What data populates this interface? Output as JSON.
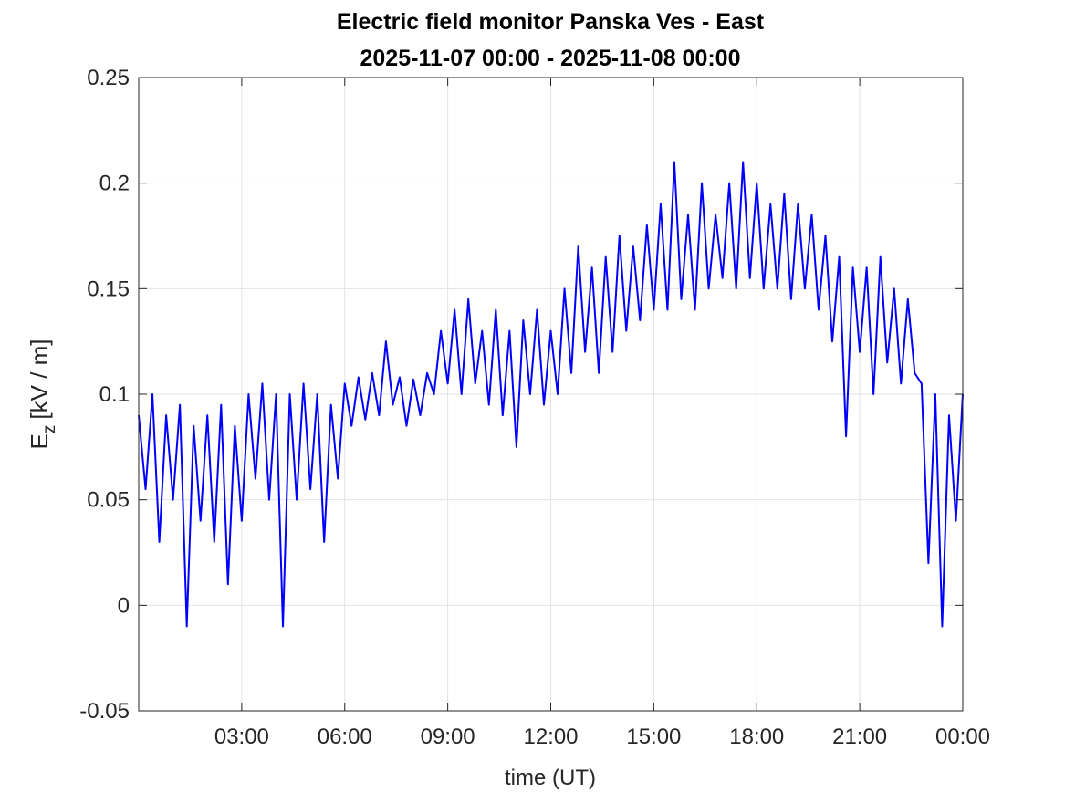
{
  "chart_data": {
    "type": "line",
    "title": "Electric field monitor Panska Ves - East",
    "subtitle": "2025-11-07 00:00 - 2025-11-08 00:00",
    "xlabel": "time (UT)",
    "ylabel": {
      "main": "E",
      "sub": "z",
      "unit": "[kV / m]"
    },
    "xlim": [
      0,
      24
    ],
    "xticks": [
      {
        "value": 3,
        "label": "03:00"
      },
      {
        "value": 6,
        "label": "06:00"
      },
      {
        "value": 9,
        "label": "09:00"
      },
      {
        "value": 12,
        "label": "12:00"
      },
      {
        "value": 15,
        "label": "15:00"
      },
      {
        "value": 18,
        "label": "18:00"
      },
      {
        "value": 21,
        "label": "21:00"
      },
      {
        "value": 24,
        "label": "00:00"
      }
    ],
    "ylim": [
      -0.05,
      0.25
    ],
    "yticks": [
      -0.05,
      0,
      0.05,
      0.1,
      0.15,
      0.2,
      0.25
    ],
    "grid": true,
    "series": [
      {
        "color": "#0000ff",
        "x": [
          0,
          0.2,
          0.4,
          0.6,
          0.8,
          1,
          1.2,
          1.4,
          1.6,
          1.8,
          2,
          2.2,
          2.4,
          2.6,
          2.8,
          3,
          3.2,
          3.4,
          3.6,
          3.8,
          4,
          4.2,
          4.4,
          4.6,
          4.8,
          5,
          5.2,
          5.4,
          5.6,
          5.8,
          6,
          6.2,
          6.4,
          6.6,
          6.8,
          7,
          7.2,
          7.4,
          7.6,
          7.8,
          8,
          8.2,
          8.4,
          8.6,
          8.8,
          9,
          9.2,
          9.4,
          9.6,
          9.8,
          10,
          10.2,
          10.4,
          10.6,
          10.8,
          11,
          11.2,
          11.4,
          11.6,
          11.8,
          12,
          12.2,
          12.4,
          12.6,
          12.8,
          13,
          13.2,
          13.4,
          13.6,
          13.8,
          14,
          14.2,
          14.4,
          14.6,
          14.8,
          15,
          15.2,
          15.4,
          15.6,
          15.8,
          16,
          16.2,
          16.4,
          16.6,
          16.8,
          17,
          17.2,
          17.4,
          17.6,
          17.8,
          18,
          18.2,
          18.4,
          18.6,
          18.8,
          19,
          19.2,
          19.4,
          19.6,
          19.8,
          20,
          20.2,
          20.4,
          20.6,
          20.8,
          21,
          21.2,
          21.4,
          21.6,
          21.8,
          22,
          22.2,
          22.4,
          22.6,
          22.8,
          23,
          23.2,
          23.4,
          23.6,
          23.8,
          24
        ],
        "values": [
          0.09,
          0.055,
          0.1,
          0.03,
          0.09,
          0.05,
          0.095,
          -0.01,
          0.085,
          0.04,
          0.09,
          0.03,
          0.095,
          0.01,
          0.085,
          0.04,
          0.1,
          0.06,
          0.105,
          0.05,
          0.1,
          -0.01,
          0.1,
          0.05,
          0.105,
          0.055,
          0.1,
          0.03,
          0.095,
          0.06,
          0.105,
          0.085,
          0.108,
          0.088,
          0.11,
          0.09,
          0.125,
          0.095,
          0.108,
          0.085,
          0.107,
          0.09,
          0.11,
          0.1,
          0.13,
          0.105,
          0.14,
          0.1,
          0.145,
          0.105,
          0.13,
          0.095,
          0.14,
          0.09,
          0.13,
          0.075,
          0.135,
          0.1,
          0.14,
          0.095,
          0.13,
          0.1,
          0.15,
          0.11,
          0.17,
          0.12,
          0.16,
          0.11,
          0.165,
          0.12,
          0.175,
          0.13,
          0.17,
          0.135,
          0.18,
          0.14,
          0.19,
          0.14,
          0.21,
          0.145,
          0.185,
          0.14,
          0.2,
          0.15,
          0.185,
          0.155,
          0.2,
          0.15,
          0.21,
          0.155,
          0.2,
          0.15,
          0.19,
          0.15,
          0.195,
          0.145,
          0.19,
          0.15,
          0.185,
          0.14,
          0.175,
          0.125,
          0.165,
          0.08,
          0.16,
          0.12,
          0.16,
          0.1,
          0.165,
          0.115,
          0.15,
          0.105,
          0.145,
          0.11,
          0.105,
          0.02,
          0.1,
          -0.01,
          0.09,
          0.04,
          0.1
        ]
      }
    ]
  }
}
